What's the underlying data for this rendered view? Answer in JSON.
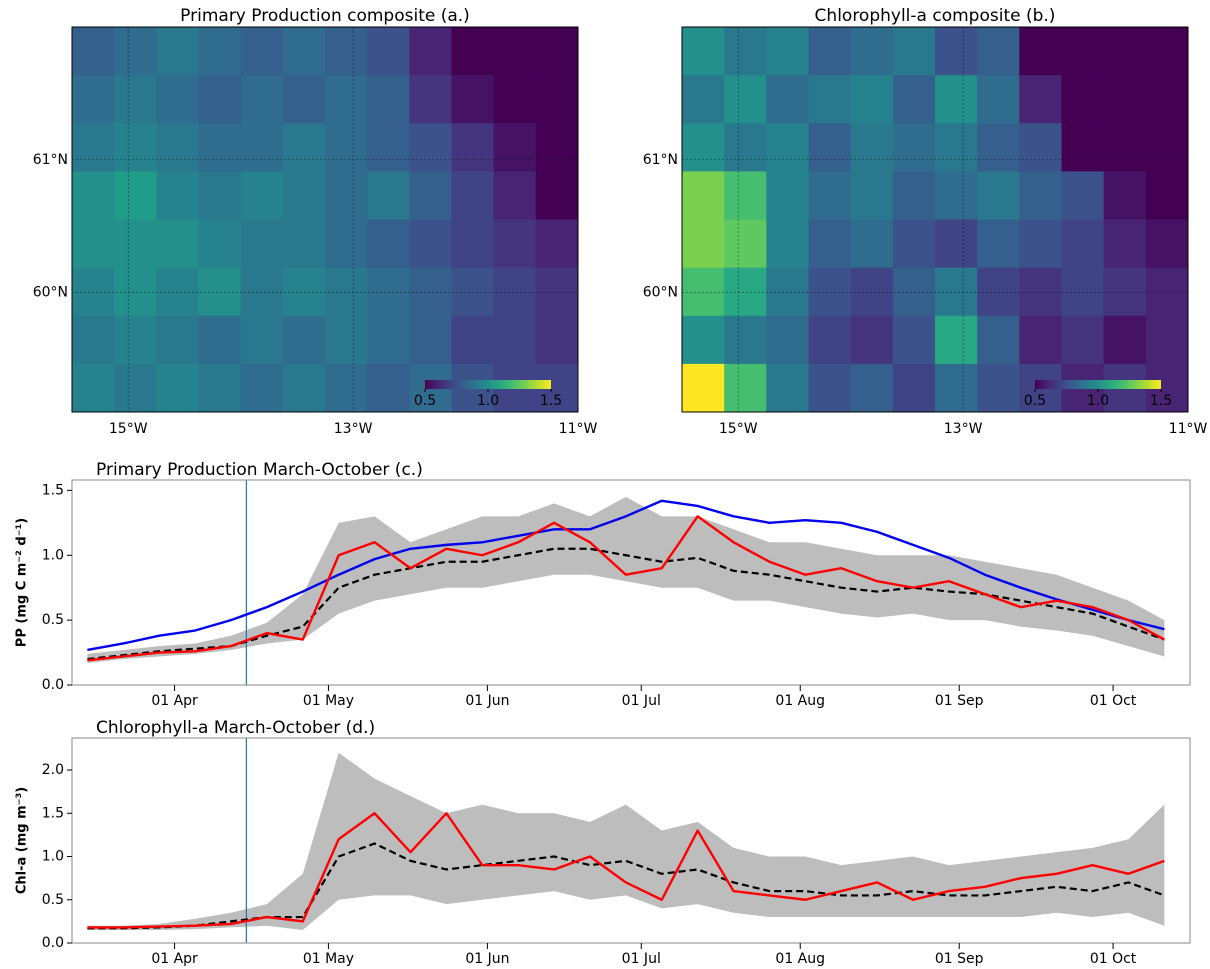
{
  "chart_data": [
    {
      "type": "heatmap",
      "title": "Primary Production composite (a.)",
      "colormap": "viridis",
      "xlim": [
        -15.5,
        -11
      ],
      "ylim": [
        59.1,
        62
      ],
      "xticks": [
        {
          "value": -15,
          "label": "15°W"
        },
        {
          "value": -13,
          "label": "13°W"
        },
        {
          "value": -11,
          "label": "11°W"
        }
      ],
      "yticks": [
        {
          "value": 60,
          "label": "60°N"
        },
        {
          "value": 61,
          "label": "61°N"
        }
      ],
      "clim": [
        0.5,
        1.5
      ],
      "cticks": [
        0.5,
        {
          "value": 1,
          "label": "1.0"
        },
        1.5
      ],
      "values": [
        [
          0.8,
          0.85,
          0.9,
          0.85,
          0.8,
          0.85,
          0.8,
          0.75,
          0.6,
          0.5,
          0.45,
          0.4
        ],
        [
          0.85,
          0.9,
          0.85,
          0.8,
          0.85,
          0.8,
          0.85,
          0.8,
          0.65,
          0.55,
          0.5,
          0.45
        ],
        [
          0.9,
          0.95,
          0.9,
          0.85,
          0.85,
          0.9,
          0.85,
          0.8,
          0.75,
          0.65,
          0.55,
          0.45
        ],
        [
          1.0,
          1.05,
          0.95,
          0.9,
          0.95,
          0.9,
          0.85,
          0.9,
          0.8,
          0.7,
          0.6,
          0.5
        ],
        [
          1.0,
          1.0,
          1.0,
          0.95,
          0.9,
          0.9,
          0.85,
          0.8,
          0.75,
          0.7,
          0.65,
          0.6
        ],
        [
          0.95,
          1.0,
          0.95,
          1.0,
          0.9,
          0.95,
          0.9,
          0.85,
          0.8,
          0.75,
          0.7,
          0.65
        ],
        [
          0.9,
          0.95,
          0.9,
          0.85,
          0.9,
          0.85,
          0.9,
          0.85,
          0.8,
          0.7,
          0.7,
          0.65
        ],
        [
          0.95,
          0.9,
          0.95,
          0.9,
          0.85,
          0.9,
          0.85,
          0.8,
          0.85,
          0.75,
          0.7,
          0.7
        ]
      ]
    },
    {
      "type": "heatmap",
      "title": "Chlorophyll-a composite (b.)",
      "colormap": "viridis",
      "xlim": [
        -15.5,
        -11
      ],
      "ylim": [
        59.1,
        62
      ],
      "xticks": [
        {
          "value": -15,
          "label": "15°W"
        },
        {
          "value": -13,
          "label": "13°W"
        },
        {
          "value": -11,
          "label": "11°W"
        }
      ],
      "yticks": [
        {
          "value": 60,
          "label": "60°N"
        },
        {
          "value": 61,
          "label": "61°N"
        }
      ],
      "clim": [
        0.5,
        1.5
      ],
      "cticks": [
        0.5,
        {
          "value": 1,
          "label": "1.0"
        },
        1.5
      ],
      "values": [
        [
          1.0,
          0.9,
          0.95,
          0.8,
          0.85,
          0.9,
          0.75,
          0.8,
          0.5,
          0.35,
          0.3,
          0.3
        ],
        [
          0.9,
          1.0,
          0.85,
          0.9,
          0.95,
          0.8,
          1.0,
          0.85,
          0.6,
          0.4,
          0.35,
          0.3
        ],
        [
          1.0,
          0.9,
          0.95,
          0.8,
          0.9,
          0.85,
          0.9,
          0.8,
          0.75,
          0.5,
          0.4,
          0.35
        ],
        [
          1.3,
          1.2,
          0.95,
          0.85,
          0.9,
          0.8,
          0.85,
          0.9,
          0.8,
          0.75,
          0.55,
          0.45
        ],
        [
          1.3,
          1.25,
          0.95,
          0.8,
          0.85,
          0.75,
          0.7,
          0.8,
          0.75,
          0.7,
          0.6,
          0.55
        ],
        [
          1.2,
          1.1,
          0.9,
          0.75,
          0.7,
          0.8,
          0.9,
          0.7,
          0.65,
          0.7,
          0.65,
          0.6
        ],
        [
          1.0,
          0.9,
          0.85,
          0.7,
          0.65,
          0.75,
          1.1,
          0.8,
          0.6,
          0.65,
          0.55,
          0.6
        ],
        [
          1.5,
          1.2,
          0.9,
          0.75,
          0.8,
          0.7,
          0.85,
          0.75,
          0.7,
          0.6,
          0.65,
          0.6
        ]
      ]
    },
    {
      "type": "line",
      "title": "Primary Production March-October (c.)",
      "ylabel": "PP (mg C m⁻² d⁻¹)",
      "xlim": [
        "12 Mar",
        "16 Oct"
      ],
      "xticks": [
        "01 Apr",
        "01 May",
        "01 Jun",
        "01 Jul",
        "01 Aug",
        "01 Sep",
        "01 Oct"
      ],
      "ylim": [
        0,
        1.58
      ],
      "yticks": [
        {
          "value": 0,
          "label": "0.0"
        },
        0.5,
        {
          "value": 1,
          "label": "1.0"
        },
        1.5
      ],
      "vline": "15 Apr",
      "vline_color": "#1f77b4",
      "x": [
        "15 Mar",
        "22 Mar",
        "29 Mar",
        "05 Apr",
        "12 Apr",
        "19 Apr",
        "26 Apr",
        "03 May",
        "10 May",
        "17 May",
        "24 May",
        "31 May",
        "07 Jun",
        "14 Jun",
        "21 Jun",
        "28 Jun",
        "05 Jul",
        "12 Jul",
        "19 Jul",
        "26 Jul",
        "02 Aug",
        "09 Aug",
        "16 Aug",
        "23 Aug",
        "30 Aug",
        "06 Sep",
        "13 Sep",
        "20 Sep",
        "27 Sep",
        "04 Oct",
        "11 Oct"
      ],
      "band": {
        "color": "#bdbdbd",
        "lower": [
          0.17,
          0.2,
          0.22,
          0.24,
          0.27,
          0.32,
          0.35,
          0.55,
          0.65,
          0.7,
          0.75,
          0.75,
          0.8,
          0.85,
          0.85,
          0.8,
          0.75,
          0.75,
          0.65,
          0.65,
          0.6,
          0.55,
          0.52,
          0.55,
          0.5,
          0.5,
          0.45,
          0.42,
          0.38,
          0.3,
          0.22
        ],
        "upper": [
          0.24,
          0.27,
          0.3,
          0.32,
          0.38,
          0.48,
          0.7,
          1.25,
          1.3,
          1.1,
          1.2,
          1.3,
          1.3,
          1.4,
          1.3,
          1.45,
          1.3,
          1.3,
          1.2,
          1.1,
          1.1,
          1.05,
          1.0,
          1.0,
          1.0,
          0.95,
          0.9,
          0.85,
          0.75,
          0.65,
          0.5
        ]
      },
      "series": [
        {
          "color": "#0000ee",
          "dash": false,
          "values": [
            0.27,
            0.32,
            0.38,
            0.42,
            0.5,
            0.6,
            0.72,
            0.85,
            0.97,
            1.05,
            1.08,
            1.1,
            1.15,
            1.2,
            1.2,
            1.3,
            1.42,
            1.38,
            1.3,
            1.25,
            1.27,
            1.25,
            1.18,
            1.08,
            0.98,
            0.85,
            0.75,
            0.66,
            0.58,
            0.5,
            0.43
          ]
        },
        {
          "color": "#000000",
          "dash": true,
          "values": [
            0.2,
            0.23,
            0.26,
            0.28,
            0.3,
            0.38,
            0.45,
            0.75,
            0.85,
            0.9,
            0.95,
            0.95,
            1.0,
            1.05,
            1.05,
            1.0,
            0.95,
            0.98,
            0.88,
            0.85,
            0.8,
            0.75,
            0.72,
            0.75,
            0.72,
            0.7,
            0.65,
            0.6,
            0.55,
            0.45,
            0.35
          ]
        },
        {
          "color": "#ff0000",
          "dash": false,
          "values": [
            0.19,
            0.22,
            0.25,
            0.26,
            0.3,
            0.4,
            0.35,
            1.0,
            1.1,
            0.9,
            1.05,
            1.0,
            1.1,
            1.25,
            1.1,
            0.85,
            0.9,
            1.3,
            1.1,
            0.95,
            0.85,
            0.9,
            0.8,
            0.75,
            0.8,
            0.7,
            0.6,
            0.65,
            0.6,
            0.5,
            0.35
          ]
        }
      ]
    },
    {
      "type": "line",
      "title": "Chlorophyll-a March-October (d.)",
      "ylabel": "Chl-a (mg m⁻³)",
      "xlim": [
        "12 Mar",
        "16 Oct"
      ],
      "xticks": [
        "01 Apr",
        "01 May",
        "01 Jun",
        "01 Jul",
        "01 Aug",
        "01 Sep",
        "01 Oct"
      ],
      "ylim": [
        0,
        2.37
      ],
      "yticks": [
        {
          "value": 0,
          "label": "0.0"
        },
        0.5,
        {
          "value": 1,
          "label": "1.0"
        },
        1.5,
        {
          "value": 2,
          "label": "2.0"
        }
      ],
      "vline": "15 Apr",
      "vline_color": "#1f77b4",
      "x": [
        "15 Mar",
        "22 Mar",
        "29 Mar",
        "05 Apr",
        "12 Apr",
        "19 Apr",
        "26 Apr",
        "03 May",
        "10 May",
        "17 May",
        "24 May",
        "31 May",
        "07 Jun",
        "14 Jun",
        "21 Jun",
        "28 Jun",
        "05 Jul",
        "12 Jul",
        "19 Jul",
        "26 Jul",
        "02 Aug",
        "09 Aug",
        "16 Aug",
        "23 Aug",
        "30 Aug",
        "06 Sep",
        "13 Sep",
        "20 Sep",
        "27 Sep",
        "04 Oct",
        "11 Oct"
      ],
      "band": {
        "color": "#bdbdbd",
        "lower": [
          0.15,
          0.15,
          0.15,
          0.16,
          0.18,
          0.2,
          0.15,
          0.5,
          0.55,
          0.55,
          0.45,
          0.5,
          0.55,
          0.6,
          0.5,
          0.55,
          0.4,
          0.45,
          0.35,
          0.3,
          0.3,
          0.3,
          0.3,
          0.3,
          0.3,
          0.3,
          0.3,
          0.35,
          0.3,
          0.35,
          0.2
        ],
        "upper": [
          0.2,
          0.2,
          0.22,
          0.28,
          0.35,
          0.45,
          0.8,
          2.2,
          1.9,
          1.7,
          1.5,
          1.6,
          1.5,
          1.5,
          1.4,
          1.6,
          1.3,
          1.4,
          1.1,
          1.0,
          1.0,
          0.9,
          0.95,
          1.0,
          0.9,
          0.95,
          1.0,
          1.05,
          1.1,
          1.2,
          1.6
        ]
      },
      "series": [
        {
          "color": "#000000",
          "dash": true,
          "values": [
            0.17,
            0.17,
            0.18,
            0.2,
            0.25,
            0.3,
            0.3,
            1.0,
            1.15,
            0.95,
            0.85,
            0.9,
            0.95,
            1.0,
            0.9,
            0.95,
            0.8,
            0.85,
            0.7,
            0.6,
            0.6,
            0.55,
            0.55,
            0.6,
            0.55,
            0.55,
            0.6,
            0.65,
            0.6,
            0.7,
            0.55
          ]
        },
        {
          "color": "#ff0000",
          "dash": false,
          "values": [
            0.18,
            0.18,
            0.19,
            0.2,
            0.22,
            0.3,
            0.25,
            1.2,
            1.5,
            1.05,
            1.5,
            0.9,
            0.9,
            0.85,
            1.0,
            0.7,
            0.5,
            1.3,
            0.6,
            0.55,
            0.5,
            0.6,
            0.7,
            0.5,
            0.6,
            0.65,
            0.75,
            0.8,
            0.9,
            0.8,
            0.95
          ]
        }
      ]
    }
  ]
}
